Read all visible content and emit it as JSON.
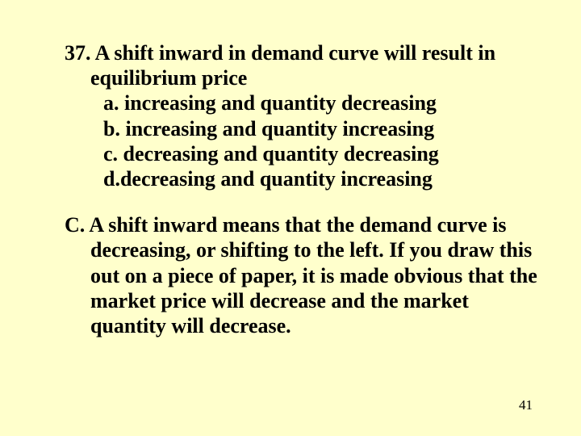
{
  "background_color": "#ffffcc",
  "text_color": "#000000",
  "font_family": "Times New Roman",
  "question": {
    "number": "37.",
    "stem": "A shift inward in demand curve will result in equilibrium price",
    "options": [
      {
        "letter": "a.",
        "text": "increasing and quantity decreasing"
      },
      {
        "letter": "b.",
        "text": "increasing and quantity increasing"
      },
      {
        "letter": "c.",
        "text": "decreasing and quantity decreasing"
      },
      {
        "letter": "d.",
        "text": "decreasing and quantity increasing",
        "spacer_after_letter": false
      }
    ],
    "font_size_pt": 26,
    "font_weight": "bold"
  },
  "answer": {
    "letter": "C.",
    "text": "A shift inward means that the demand curve is decreasing, or shifting to the left. If you draw this out on a piece of paper, it is made obvious that the market price will decrease and the market quantity will decrease.",
    "font_size_pt": 26,
    "font_weight": "bold"
  },
  "page_number": "41",
  "page_number_fontsize": 17
}
